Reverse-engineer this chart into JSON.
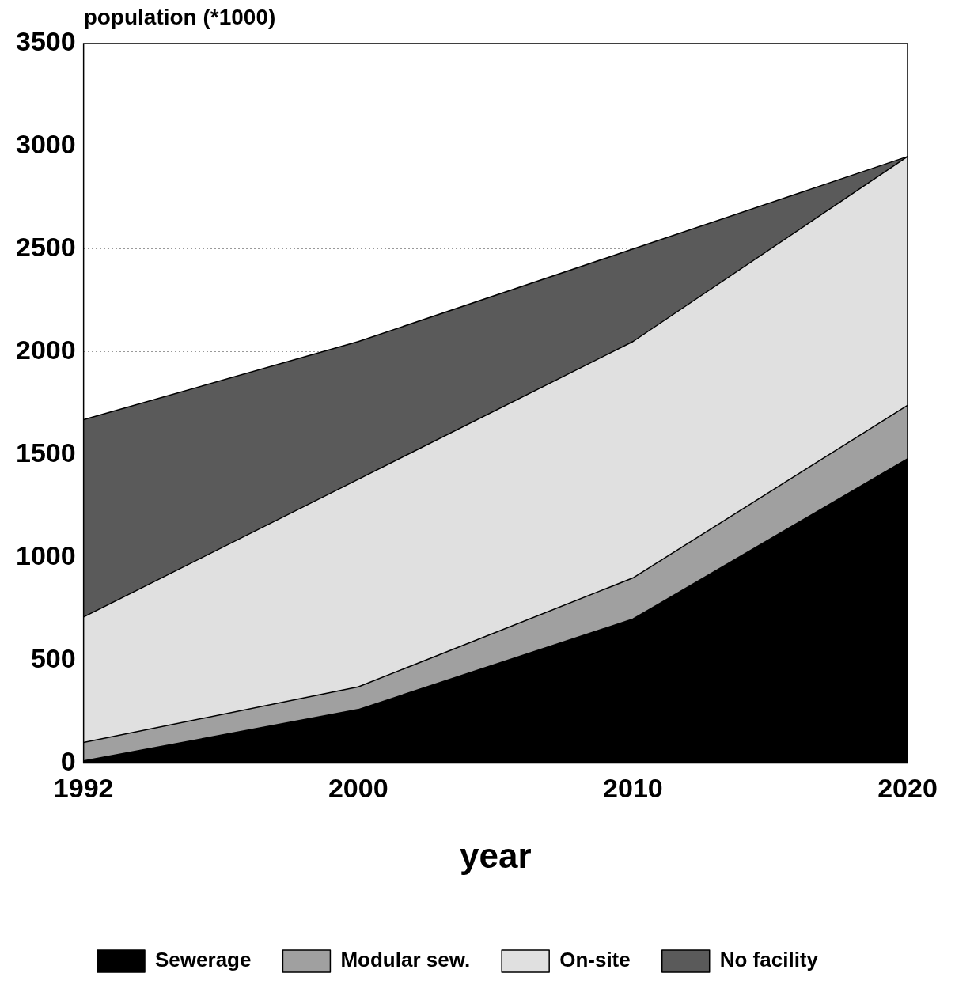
{
  "chart_data": {
    "type": "area",
    "stacked": true,
    "xlabel": "year",
    "ylabel": "population (*1000)",
    "categories": [
      "1992",
      "2000",
      "2010",
      "2020"
    ],
    "series": [
      {
        "name": "Sewerage",
        "color": "#000000",
        "values": [
          10,
          260,
          700,
          1480
        ]
      },
      {
        "name": "Modular sew.",
        "color": "#a0a0a0",
        "values": [
          90,
          110,
          200,
          260
        ]
      },
      {
        "name": "On-site",
        "color": "#e0e0e0",
        "values": [
          610,
          1010,
          1150,
          1210
        ]
      },
      {
        "name": "No facility",
        "color": "#5a5a5a",
        "values": [
          960,
          670,
          450,
          0
        ]
      }
    ],
    "ylim": [
      0,
      3500
    ],
    "yticks": [
      0,
      500,
      1000,
      1500,
      2000,
      2500,
      3000,
      3500
    ],
    "grid": "y",
    "legend": "bottom",
    "marker": "none"
  }
}
